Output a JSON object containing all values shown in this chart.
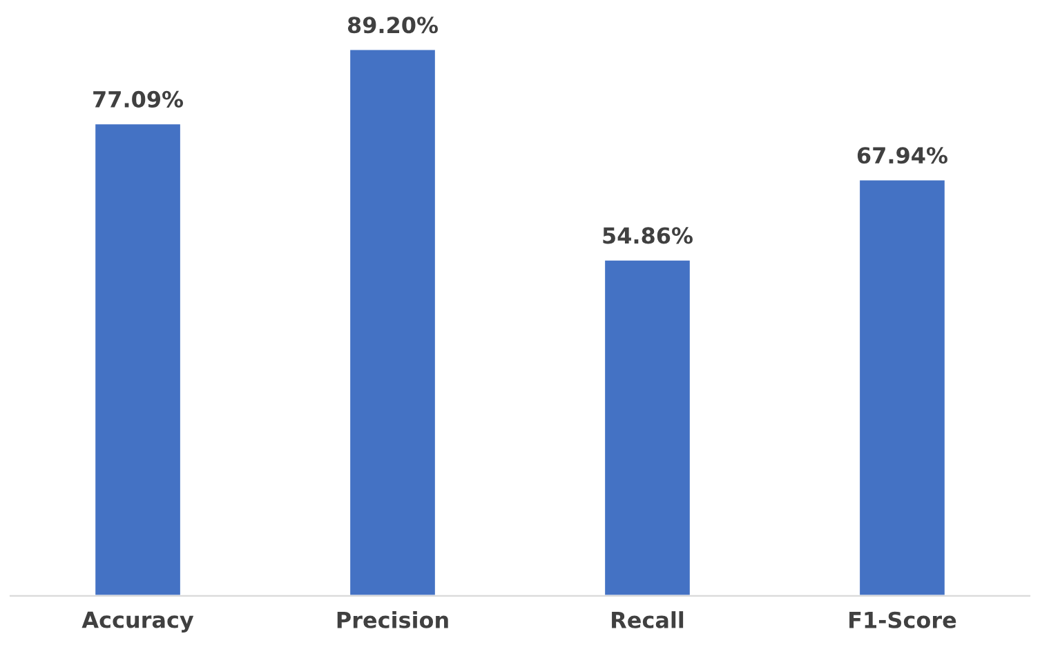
{
  "chart_data": {
    "type": "bar",
    "categories": [
      "Accuracy",
      "Precision",
      "Recall",
      "F1-Score"
    ],
    "values": [
      77.09,
      89.2,
      54.86,
      67.94
    ],
    "value_labels": [
      "77.09%",
      "89.20%",
      "54.86%",
      "67.94%"
    ],
    "color": "#4472c4"
  }
}
